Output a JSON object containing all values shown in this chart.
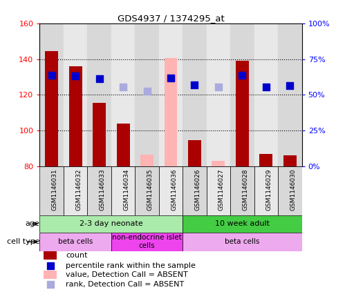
{
  "title": "GDS4937 / 1374295_at",
  "samples": [
    "GSM1146031",
    "GSM1146032",
    "GSM1146033",
    "GSM1146034",
    "GSM1146035",
    "GSM1146036",
    "GSM1146026",
    "GSM1146027",
    "GSM1146028",
    "GSM1146029",
    "GSM1146030"
  ],
  "count_values": [
    144.5,
    136.0,
    115.5,
    104.0,
    null,
    null,
    94.5,
    null,
    139.0,
    87.0,
    86.0
  ],
  "count_absent_values": [
    null,
    null,
    null,
    null,
    86.5,
    140.5,
    null,
    83.0,
    null,
    null,
    null
  ],
  "rank_values": [
    131.0,
    130.5,
    129.0,
    null,
    null,
    129.5,
    125.5,
    null,
    131.0,
    124.5,
    125.0
  ],
  "rank_absent_values": [
    null,
    null,
    null,
    124.5,
    122.0,
    null,
    null,
    124.5,
    null,
    null,
    null
  ],
  "ylim": [
    80,
    160
  ],
  "yticks": [
    80,
    100,
    120,
    140,
    160
  ],
  "y2lim": [
    0,
    100
  ],
  "y2ticks": [
    0,
    25,
    50,
    75,
    100
  ],
  "y2ticklabels": [
    "0%",
    "25%",
    "50%",
    "75%",
    "100%"
  ],
  "bar_color": "#aa0000",
  "bar_absent_color": "#ffb3b3",
  "rank_color": "#0000cc",
  "rank_absent_color": "#aaaadd",
  "age_groups": [
    {
      "label": "2-3 day neonate",
      "start": 0,
      "end": 6,
      "color": "#aaeaaa"
    },
    {
      "label": "10 week adult",
      "start": 6,
      "end": 11,
      "color": "#44cc44"
    }
  ],
  "cell_type_groups": [
    {
      "label": "beta cells",
      "start": 0,
      "end": 3,
      "color": "#eeaaee"
    },
    {
      "label": "non-endocrine islet\ncells",
      "start": 3,
      "end": 6,
      "color": "#ee44ee"
    },
    {
      "label": "beta cells",
      "start": 6,
      "end": 11,
      "color": "#eeaaee"
    }
  ],
  "background_color": "#ffffff",
  "bar_width": 0.55,
  "rank_marker_size": 55
}
